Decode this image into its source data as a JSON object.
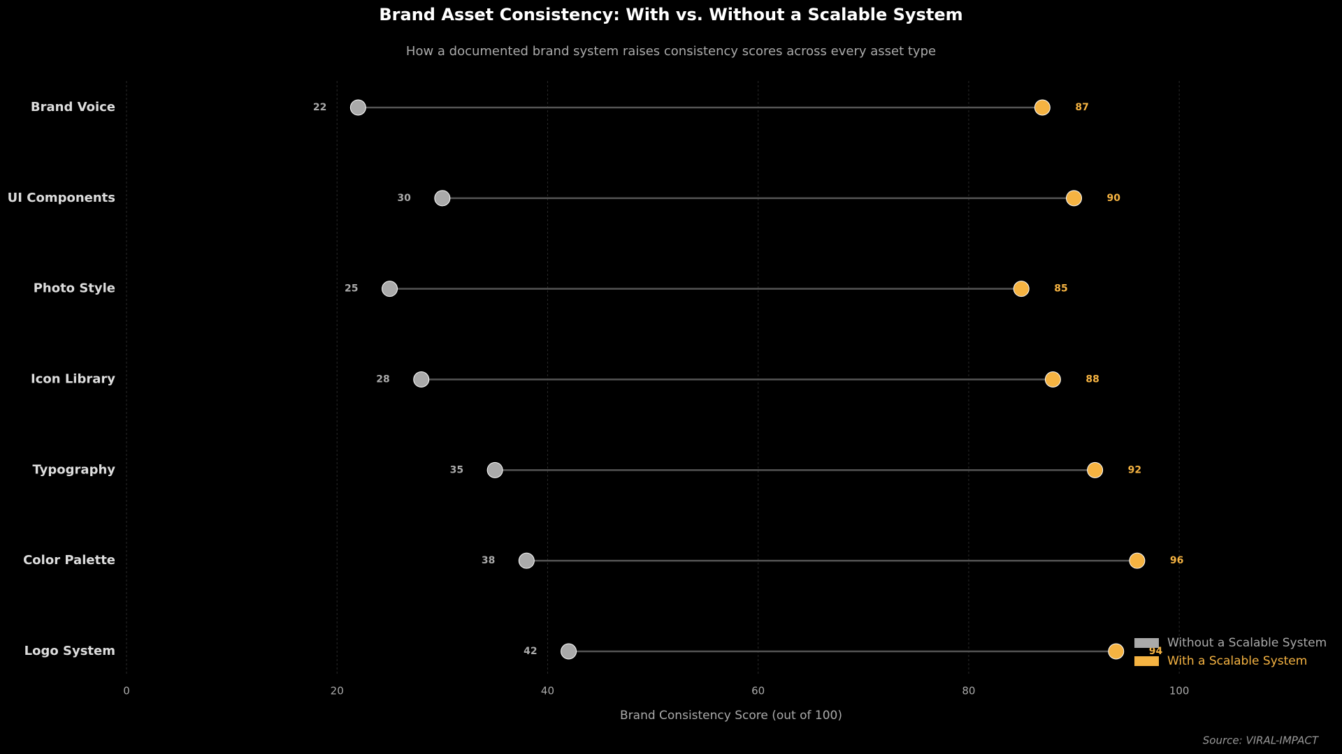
{
  "chart_data": {
    "type": "dumbbell",
    "title": "Brand Asset Consistency: With vs. Without a Scalable System",
    "subtitle": "How a documented brand system raises consistency scores across every asset type",
    "x_label": "Brand Consistency Score  (out of 100)",
    "source": "Source: VIRAL-IMPACT",
    "categories": [
      "Brand Voice",
      "UI Components",
      "Photo Style",
      "Icon Library",
      "Typography",
      "Color Palette",
      "Logo System"
    ],
    "series": [
      {
        "name": "Without a Scalable System",
        "color": "#aaaaaa",
        "values": [
          22,
          30,
          25,
          28,
          35,
          38,
          42
        ]
      },
      {
        "name": "With a Scalable System",
        "color": "#f5b342",
        "values": [
          87,
          90,
          85,
          88,
          92,
          96,
          94
        ]
      }
    ],
    "xlim": [
      0,
      114
    ],
    "xticks": [
      0,
      20,
      40,
      60,
      80,
      100
    ],
    "grid": true,
    "legend": "lower right"
  }
}
